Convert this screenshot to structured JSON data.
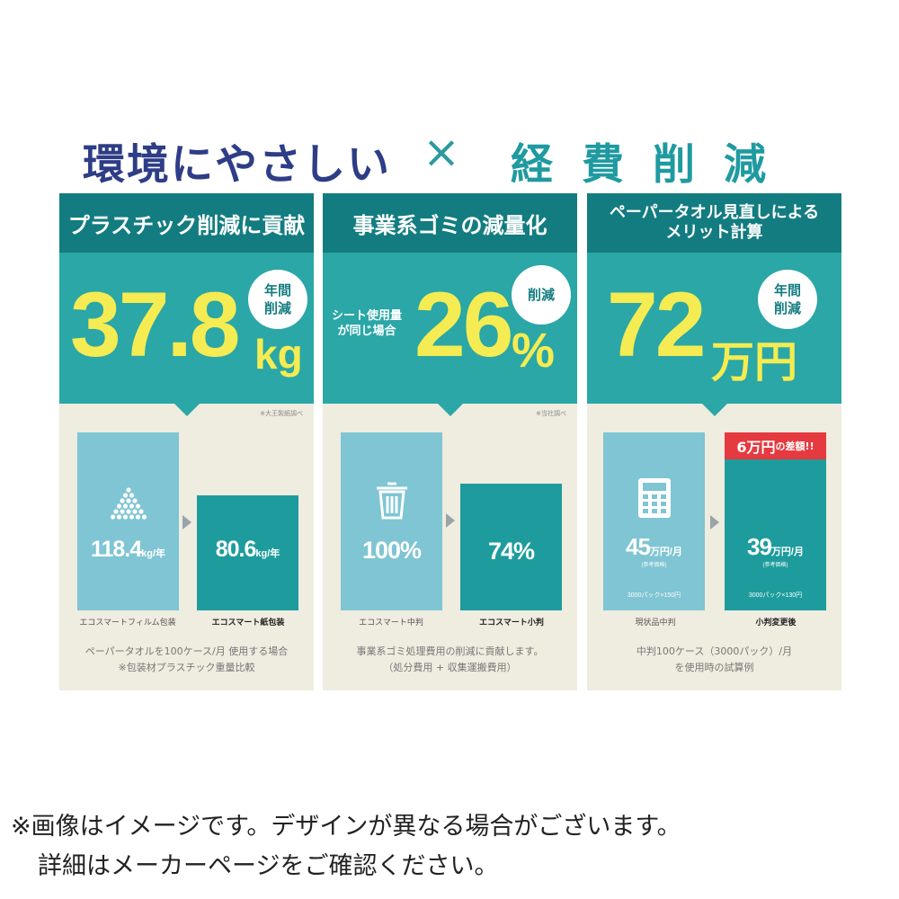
{
  "headline": {
    "left": "環境にやさしい",
    "cross": "×",
    "right": "経費削減"
  },
  "colors": {
    "navy": "#2e3d86",
    "teal_dark": "#137c80",
    "teal": "#2aa7a6",
    "yellow": "#f4ec52",
    "light_blue": "#7fc5d3",
    "red": "#e53a3f",
    "beige": "#efece0"
  },
  "panels": [
    {
      "title": "プラスチック削減に貢献",
      "big_number": "37.8",
      "unit": "kg",
      "badge": [
        "年間",
        "削減"
      ],
      "source_note": "※大王製紙調べ",
      "before": {
        "value": "118.4",
        "unit": "kg/年",
        "caption": "エコスマートフィルム包装",
        "icon": "plastic-pellets-icon"
      },
      "after": {
        "value": "80.6",
        "unit": "kg/年",
        "caption": "エコスマート紙包装"
      },
      "footnote": [
        "ペーパータオルを100ケース/月 使用する場合",
        "※包装材プラスチック重量比較"
      ]
    },
    {
      "title": "事業系ゴミの減量化",
      "side_note": [
        "シート使用量",
        "が同じ場合"
      ],
      "big_number": "26",
      "unit": "%",
      "badge": [
        "削減"
      ],
      "source_note": "※当社調べ",
      "before": {
        "value": "100%",
        "caption": "エコスマート中判",
        "icon": "trash-can-icon"
      },
      "after": {
        "value": "74%",
        "caption": "エコスマート小判"
      },
      "footnote": [
        "事業系ゴミ処理費用の削減に貢献します。",
        "（処分費用 + 収集運搬費用）"
      ]
    },
    {
      "title_lines": [
        "ペーパータオル見直しによる",
        "メリット計算"
      ],
      "big_number": "72",
      "unit": "万円",
      "badge": [
        "年間",
        "削減"
      ],
      "before": {
        "value": "45",
        "unit": "万円/月",
        "ref": "(参考価格)",
        "calc": "3000パック×150円",
        "caption": "現状品中判",
        "icon": "calculator-icon"
      },
      "after": {
        "value": "39",
        "unit": "万円/月",
        "ref": "(参考価格)",
        "calc": "3000パック×130円",
        "caption": "小判変更後"
      },
      "save_tag": {
        "amount": "6万円",
        "suffix": "の差額!!"
      },
      "footnote": [
        "中判100ケース（3000パック）/月",
        "を使用時の試算例"
      ]
    }
  ],
  "disclaimer": [
    "※画像はイメージです。デザインが異なる場合がございます。",
    "詳細はメーカーページをご確認ください。"
  ]
}
